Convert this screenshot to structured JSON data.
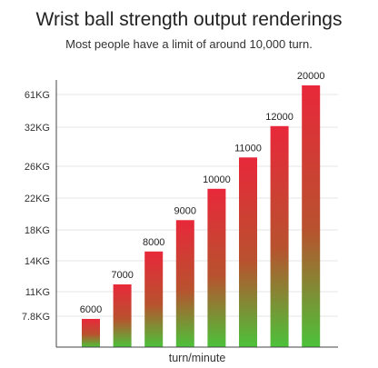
{
  "chart_data": {
    "type": "bar",
    "title": "Wrist ball strength output renderings",
    "subtitle": "Most people have a limit of around 10,000 turn.",
    "xlabel": "turn/minute",
    "ylabel": "",
    "y_ticks": [
      "7.8KG",
      "11KG",
      "14KG",
      "18KG",
      "22KG",
      "26KG",
      "32KG",
      "61KG"
    ],
    "values": [
      6000,
      7000,
      8000,
      9000,
      10000,
      11000,
      12000,
      20000
    ],
    "data_labels": [
      "6000",
      "7000",
      "8000",
      "9000",
      "10000",
      "11000",
      "12000",
      "20000"
    ],
    "bar_levels": [
      0.9,
      2.0,
      3.05,
      4.05,
      5.05,
      6.05,
      7.05,
      8.35
    ],
    "grid": true,
    "colors": {
      "bar_top": "#e8283a",
      "bar_bottom": "#4cc23a",
      "axis": "#444444",
      "grid": "#e6e6e6"
    }
  }
}
